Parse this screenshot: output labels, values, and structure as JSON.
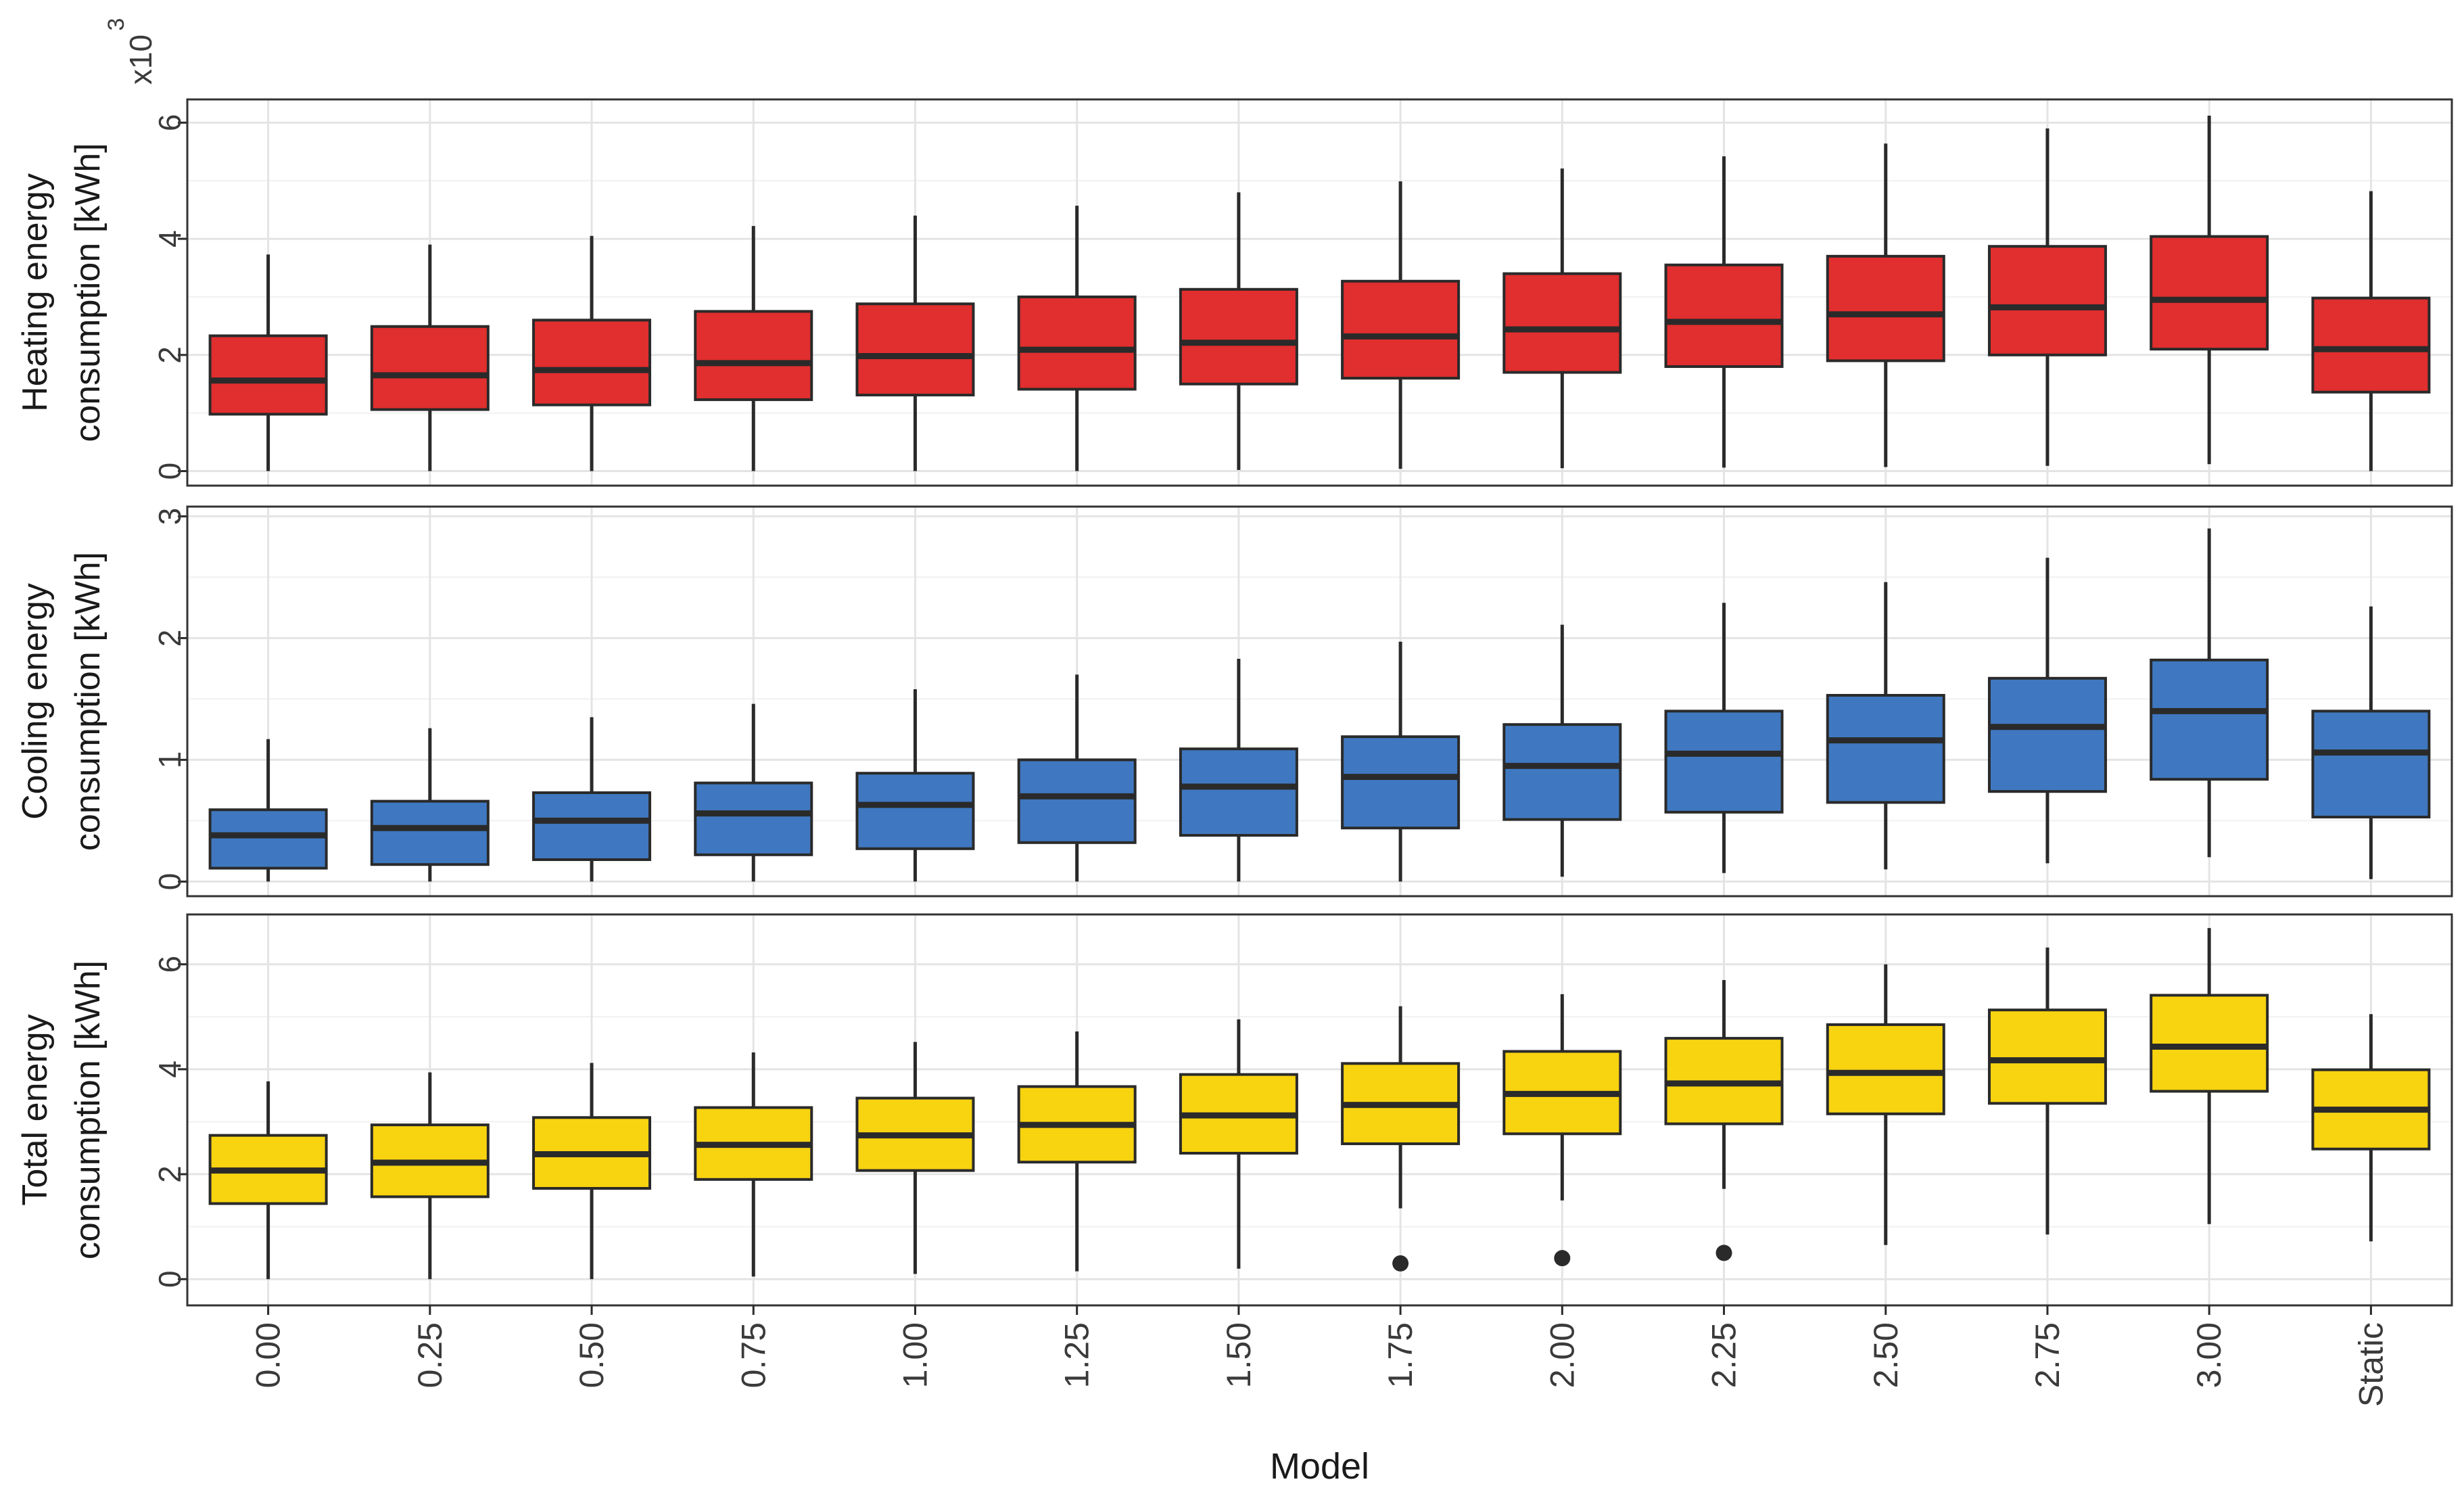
{
  "chart_data": {
    "type": "boxplot",
    "x_label": "Model",
    "categories": [
      "0.00",
      "0.25",
      "0.50",
      "0.75",
      "1.00",
      "1.25",
      "1.50",
      "1.75",
      "2.00",
      "2.25",
      "2.50",
      "2.75",
      "3.00",
      "Static"
    ],
    "panels": [
      {
        "id": "heating",
        "ylabel": [
          "Heating energy",
          "consumption [kWh]"
        ],
        "multiplier_label": "x10",
        "multiplier_exponent": "3",
        "fill": "#e12e2e",
        "ylim": [
          -0.25,
          6.4
        ],
        "yticks": [
          0,
          2,
          4,
          6
        ],
        "boxes": [
          {
            "lw": 0.0,
            "q1": 0.98,
            "med": 1.56,
            "q3": 2.33,
            "uw": 3.73,
            "outliers": []
          },
          {
            "lw": 0.0,
            "q1": 1.06,
            "med": 1.65,
            "q3": 2.49,
            "uw": 3.9,
            "outliers": []
          },
          {
            "lw": 0.0,
            "q1": 1.14,
            "med": 1.74,
            "q3": 2.6,
            "uw": 4.05,
            "outliers": []
          },
          {
            "lw": 0.0,
            "q1": 1.23,
            "med": 1.86,
            "q3": 2.75,
            "uw": 4.22,
            "outliers": []
          },
          {
            "lw": 0.0,
            "q1": 1.31,
            "med": 1.98,
            "q3": 2.88,
            "uw": 4.4,
            "outliers": []
          },
          {
            "lw": 0.0,
            "q1": 1.41,
            "med": 2.09,
            "q3": 3.0,
            "uw": 4.57,
            "outliers": []
          },
          {
            "lw": 0.02,
            "q1": 1.5,
            "med": 2.21,
            "q3": 3.13,
            "uw": 4.8,
            "outliers": []
          },
          {
            "lw": 0.04,
            "q1": 1.6,
            "med": 2.32,
            "q3": 3.27,
            "uw": 4.99,
            "outliers": []
          },
          {
            "lw": 0.05,
            "q1": 1.7,
            "med": 2.44,
            "q3": 3.4,
            "uw": 5.21,
            "outliers": []
          },
          {
            "lw": 0.06,
            "q1": 1.8,
            "med": 2.57,
            "q3": 3.55,
            "uw": 5.42,
            "outliers": []
          },
          {
            "lw": 0.07,
            "q1": 1.9,
            "med": 2.7,
            "q3": 3.7,
            "uw": 5.64,
            "outliers": []
          },
          {
            "lw": 0.09,
            "q1": 2.0,
            "med": 2.82,
            "q3": 3.87,
            "uw": 5.9,
            "outliers": []
          },
          {
            "lw": 0.12,
            "q1": 2.1,
            "med": 2.95,
            "q3": 4.04,
            "uw": 6.12,
            "outliers": []
          },
          {
            "lw": 0.0,
            "q1": 1.36,
            "med": 2.1,
            "q3": 2.98,
            "uw": 4.82,
            "outliers": []
          }
        ]
      },
      {
        "id": "cooling",
        "ylabel": [
          "Cooling energy",
          "consumption [kWh]"
        ],
        "fill": "#3f78c0",
        "ylim": [
          -0.12,
          3.08
        ],
        "yticks": [
          0,
          1,
          2,
          3
        ],
        "boxes": [
          {
            "lw": 0.0,
            "q1": 0.11,
            "med": 0.38,
            "q3": 0.59,
            "uw": 1.17,
            "outliers": []
          },
          {
            "lw": 0.0,
            "q1": 0.14,
            "med": 0.44,
            "q3": 0.66,
            "uw": 1.26,
            "outliers": []
          },
          {
            "lw": 0.0,
            "q1": 0.18,
            "med": 0.5,
            "q3": 0.73,
            "uw": 1.35,
            "outliers": []
          },
          {
            "lw": 0.0,
            "q1": 0.22,
            "med": 0.56,
            "q3": 0.81,
            "uw": 1.46,
            "outliers": []
          },
          {
            "lw": 0.0,
            "q1": 0.27,
            "med": 0.63,
            "q3": 0.89,
            "uw": 1.58,
            "outliers": []
          },
          {
            "lw": 0.0,
            "q1": 0.32,
            "med": 0.7,
            "q3": 1.0,
            "uw": 1.7,
            "outliers": []
          },
          {
            "lw": 0.0,
            "q1": 0.38,
            "med": 0.78,
            "q3": 1.09,
            "uw": 1.83,
            "outliers": []
          },
          {
            "lw": 0.0,
            "q1": 0.44,
            "med": 0.86,
            "q3": 1.19,
            "uw": 1.97,
            "outliers": []
          },
          {
            "lw": 0.04,
            "q1": 0.51,
            "med": 0.95,
            "q3": 1.29,
            "uw": 2.11,
            "outliers": []
          },
          {
            "lw": 0.07,
            "q1": 0.57,
            "med": 1.05,
            "q3": 1.4,
            "uw": 2.29,
            "outliers": []
          },
          {
            "lw": 0.1,
            "q1": 0.65,
            "med": 1.16,
            "q3": 1.53,
            "uw": 2.46,
            "outliers": []
          },
          {
            "lw": 0.15,
            "q1": 0.74,
            "med": 1.27,
            "q3": 1.67,
            "uw": 2.66,
            "outliers": []
          },
          {
            "lw": 0.2,
            "q1": 0.84,
            "med": 1.4,
            "q3": 1.82,
            "uw": 2.9,
            "outliers": []
          },
          {
            "lw": 0.02,
            "q1": 0.53,
            "med": 1.06,
            "q3": 1.4,
            "uw": 2.26,
            "outliers": []
          }
        ]
      },
      {
        "id": "total",
        "ylabel": [
          "Total energy",
          "consumption [kWh]"
        ],
        "fill": "#f8d310",
        "ylim": [
          -0.5,
          6.95
        ],
        "yticks": [
          0,
          2,
          4,
          6
        ],
        "boxes": [
          {
            "lw": 0.0,
            "q1": 1.44,
            "med": 2.07,
            "q3": 2.74,
            "uw": 3.77,
            "outliers": []
          },
          {
            "lw": 0.0,
            "q1": 1.57,
            "med": 2.22,
            "q3": 2.94,
            "uw": 3.94,
            "outliers": []
          },
          {
            "lw": 0.0,
            "q1": 1.73,
            "med": 2.38,
            "q3": 3.08,
            "uw": 4.12,
            "outliers": []
          },
          {
            "lw": 0.05,
            "q1": 1.9,
            "med": 2.56,
            "q3": 3.27,
            "uw": 4.32,
            "outliers": []
          },
          {
            "lw": 0.1,
            "q1": 2.07,
            "med": 2.74,
            "q3": 3.45,
            "uw": 4.52,
            "outliers": []
          },
          {
            "lw": 0.15,
            "q1": 2.23,
            "med": 2.94,
            "q3": 3.67,
            "uw": 4.72,
            "outliers": []
          },
          {
            "lw": 0.2,
            "q1": 2.4,
            "med": 3.12,
            "q3": 3.9,
            "uw": 4.95,
            "outliers": []
          },
          {
            "lw": 1.35,
            "q1": 2.58,
            "med": 3.32,
            "q3": 4.11,
            "uw": 5.2,
            "outliers": [
              0.3
            ]
          },
          {
            "lw": 1.5,
            "q1": 2.77,
            "med": 3.53,
            "q3": 4.34,
            "uw": 5.43,
            "outliers": [
              0.4
            ]
          },
          {
            "lw": 1.72,
            "q1": 2.96,
            "med": 3.73,
            "q3": 4.59,
            "uw": 5.7,
            "outliers": [
              0.5
            ]
          },
          {
            "lw": 0.65,
            "q1": 3.15,
            "med": 3.93,
            "q3": 4.85,
            "uw": 6.0,
            "outliers": []
          },
          {
            "lw": 0.85,
            "q1": 3.35,
            "med": 4.17,
            "q3": 5.13,
            "uw": 6.32,
            "outliers": []
          },
          {
            "lw": 1.05,
            "q1": 3.58,
            "med": 4.43,
            "q3": 5.41,
            "uw": 6.69,
            "outliers": []
          },
          {
            "lw": 0.72,
            "q1": 2.48,
            "med": 3.23,
            "q3": 3.99,
            "uw": 5.05,
            "outliers": []
          }
        ]
      }
    ]
  }
}
